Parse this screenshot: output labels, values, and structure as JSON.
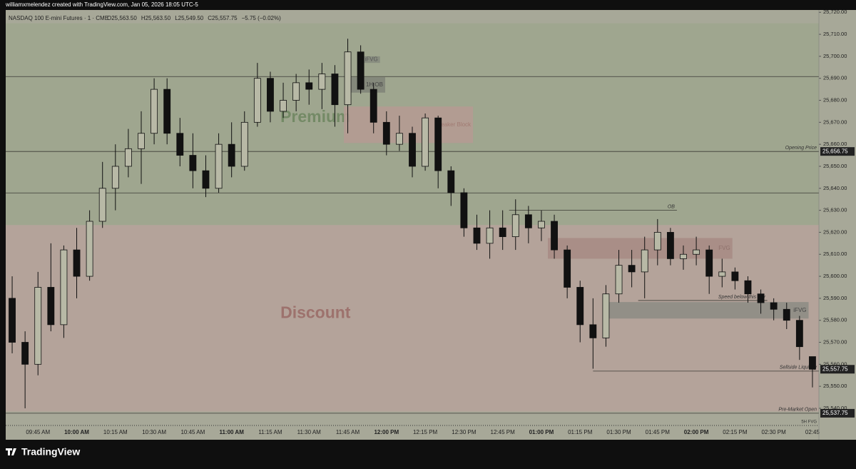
{
  "header": {
    "credit": "williamxmelendez created with TradingView.com, Jan 05, 2026 18:05 UTC-5",
    "symbol": "NASDAQ 100 E-mini Futures · 1 · CME",
    "ohlc": [
      "O25,563.50",
      "H25,563.50",
      "L25,549.50",
      "C25,557.75",
      "−5.75 (−0.02%)"
    ]
  },
  "footer": {
    "brand": "TradingView"
  },
  "chart_data": {
    "type": "candlestick",
    "categories": [
      null,
      null,
      "09:45 AM",
      null,
      null,
      "10:00 AM",
      null,
      null,
      "10:15 AM",
      null,
      null,
      "10:30 AM",
      null,
      null,
      "10:45 AM",
      null,
      null,
      "11:00 AM",
      null,
      null,
      "11:15 AM",
      null,
      null,
      "11:30 AM",
      null,
      null,
      "11:45 AM",
      null,
      null,
      "12:00 PM",
      null,
      null,
      "12:15 PM",
      null,
      null,
      "12:30 PM",
      null,
      null,
      "12:45 PM",
      null,
      null,
      "01:00 PM",
      null,
      null,
      "01:15 PM",
      null,
      null,
      "01:30 PM",
      null,
      null,
      "01:45 PM",
      null,
      null,
      "02:00 PM",
      null,
      null,
      "02:15 PM",
      null,
      null,
      "02:30 PM",
      null,
      null,
      "02:45"
    ],
    "open": [
      25590,
      25570,
      25560,
      25595,
      25578,
      25612,
      25600,
      25625,
      25640,
      25650,
      25658,
      25665,
      25685,
      25665,
      25655,
      25648,
      25640,
      25660,
      25650,
      25670,
      25690,
      25675,
      25680,
      25688,
      25685,
      25692,
      25678,
      25702,
      25685,
      25670,
      25660,
      25665,
      25650,
      25672,
      25648,
      25638,
      25622,
      25615,
      25622,
      25618,
      25628,
      25622,
      25625,
      25612,
      25595,
      25578,
      25572,
      25592,
      25605,
      25602,
      25612,
      25620,
      25608,
      25610,
      25612,
      25600,
      25602,
      25598,
      25592,
      25588,
      25585,
      25580,
      25563.5
    ],
    "high": [
      25600,
      25575,
      25602,
      25615,
      25614,
      25622,
      25630,
      25652,
      25660,
      25667,
      25675,
      25690,
      25690,
      25672,
      25665,
      25655,
      25665,
      25670,
      25675,
      25697,
      25693,
      25688,
      25692,
      25694,
      25697,
      25696,
      25708,
      25705,
      25688,
      25675,
      25673,
      25668,
      25674,
      25673,
      25650,
      25640,
      25628,
      25630,
      25630,
      25635,
      25632,
      25630,
      25628,
      25614,
      25598,
      25590,
      25596,
      25612,
      25612,
      25618,
      25626,
      25622,
      25614,
      25618,
      25614,
      25608,
      25604,
      25600,
      25594,
      25590,
      25588,
      25582,
      25563.5
    ],
    "low": [
      25565,
      25540,
      25555,
      25575,
      25572,
      25590,
      25598,
      25622,
      25630,
      25645,
      25642,
      25660,
      25660,
      25650,
      25640,
      25636,
      25638,
      25645,
      25648,
      25668,
      25670,
      25672,
      25675,
      25678,
      25676,
      25668,
      25665,
      25683,
      25665,
      25655,
      25657,
      25645,
      25648,
      25640,
      25632,
      25618,
      25612,
      25608,
      25612,
      25612,
      25615,
      25616,
      25608,
      25590,
      25570,
      25558,
      25568,
      25588,
      25595,
      25590,
      25605,
      25605,
      25603,
      25605,
      25592,
      25595,
      25594,
      25588,
      25583,
      25580,
      25576,
      25562,
      25549.5
    ],
    "close": [
      25570,
      25560,
      25595,
      25578,
      25612,
      25600,
      25625,
      25640,
      25650,
      25658,
      25665,
      25685,
      25665,
      25655,
      25648,
      25640,
      25660,
      25650,
      25670,
      25690,
      25675,
      25680,
      25688,
      25685,
      25692,
      25678,
      25702,
      25685,
      25670,
      25660,
      25665,
      25650,
      25672,
      25648,
      25638,
      25622,
      25615,
      25622,
      25618,
      25628,
      25622,
      25625,
      25612,
      25595,
      25578,
      25572,
      25592,
      25605,
      25602,
      25612,
      25620,
      25608,
      25610,
      25612,
      25600,
      25602,
      25598,
      25592,
      25588,
      25585,
      25580,
      25568,
      25557.75
    ],
    "up_color": "#b8b9a6",
    "down_color": "#111111",
    "ylim": [
      25533.5,
      25723
    ],
    "yticks": [
      {
        "value": 25540,
        "label": "25,540.00"
      },
      {
        "value": 25550,
        "label": "25,550.00"
      },
      {
        "value": 25560,
        "label": "25,560.00"
      },
      {
        "value": 25570,
        "label": "25,570.00"
      },
      {
        "value": 25580,
        "label": "25,580.00"
      },
      {
        "value": 25590,
        "label": "25,590.00"
      },
      {
        "value": 25600,
        "label": "25,600.00"
      },
      {
        "value": 25610,
        "label": "25,610.00"
      },
      {
        "value": 25620,
        "label": "25,620.00"
      },
      {
        "value": 25630,
        "label": "25,630.00"
      },
      {
        "value": 25640,
        "label": "25,640.00"
      },
      {
        "value": 25650,
        "label": "25,650.00"
      },
      {
        "value": 25660,
        "label": "25,660.00"
      },
      {
        "value": 25670,
        "label": "25,670.00"
      },
      {
        "value": 25680,
        "label": "25,680.00"
      },
      {
        "value": 25690,
        "label": "25,690.00"
      },
      {
        "value": 25700,
        "label": "25,700.00"
      },
      {
        "value": 25710,
        "label": "25,710.00"
      },
      {
        "value": 25720,
        "label": "25,720.00"
      }
    ],
    "zones": [
      {
        "label": "Premium",
        "low": 25623.3,
        "high": 25715,
        "color": "#9fa68f",
        "text_color": "#748a66",
        "text_price": 25672,
        "text_x": 24
      },
      {
        "label": "Discount",
        "low": 25538.5,
        "high": 25623.3,
        "color": "#b4a39a",
        "text_color": "#9d726d",
        "text_price": 25583,
        "text_x": 24
      }
    ],
    "boxes": [
      {
        "label": "Breaker Block",
        "x": [
          26.2,
          36.2
        ],
        "low": 25660.6,
        "high": 25677.2,
        "color": "#b59a93",
        "text_color": "#a07a72"
      },
      {
        "label": "1H OB",
        "x": [
          26.6,
          29.4
        ],
        "low": 25683.5,
        "high": 25690.5,
        "color": "#7f8378",
        "text_color": "#444"
      },
      {
        "label": "iFVG",
        "x": [
          27.4,
          29.0
        ],
        "low": 25697,
        "high": 25700,
        "color": "#858a7e",
        "text_color": "#555"
      },
      {
        "label": "FVG",
        "x": [
          42.0,
          56.3
        ],
        "low": 25608,
        "high": 25617.4,
        "color": "#a78b84",
        "text_color": "#8e716b"
      },
      {
        "label": "iFVG",
        "x": [
          46.4,
          62.2
        ],
        "low": 25580.8,
        "high": 25588.3,
        "color": "#8c8c84",
        "text_color": "#444"
      }
    ],
    "lines": [
      {
        "label": "Opening Price",
        "price": 25656.75,
        "x": [
          0,
          63
        ],
        "price_label": "25,656.75"
      },
      {
        "label": null,
        "price": 25690.8,
        "x": [
          0,
          63
        ]
      },
      {
        "label": null,
        "price": 25637.9,
        "x": [
          0,
          63
        ]
      },
      {
        "label": "OB",
        "price": 25630,
        "x": [
          39,
          52
        ]
      },
      {
        "label": "Speed below this low",
        "price": 25589,
        "x": [
          49,
          59
        ]
      },
      {
        "label": "Sellside Liquidity",
        "price": 25556.9,
        "x": [
          45.5,
          63
        ],
        "price_label": "25,557.75",
        "badge_price": 25557.75
      },
      {
        "label": "Pre-Market Open",
        "price": 25537.75,
        "x": [
          0,
          63
        ],
        "price_label": "25,537.75"
      }
    ],
    "dotted_label": "5H FVG"
  }
}
